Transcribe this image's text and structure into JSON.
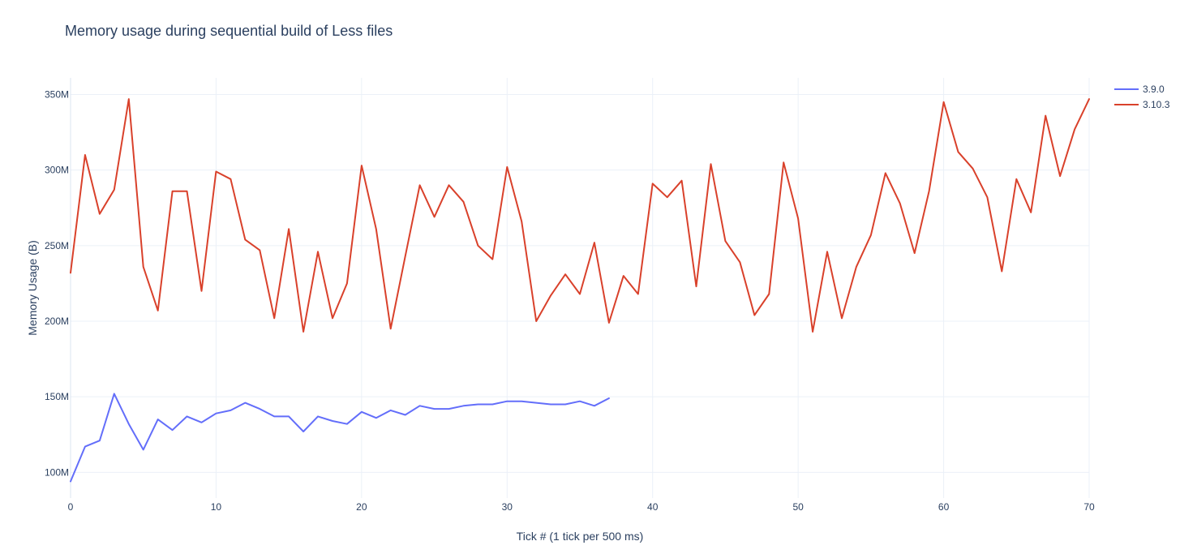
{
  "chart_data": {
    "type": "line",
    "title": "Memory usage during sequential build of Less files",
    "xlabel": "Tick # (1 tick per 500 ms)",
    "ylabel": "Memory Usage (B)",
    "xlim": [
      0,
      70
    ],
    "ylim": [
      83000000,
      361000000
    ],
    "xticks": [
      0,
      10,
      20,
      30,
      40,
      50,
      60,
      70
    ],
    "yticks": [
      {
        "value": 100000000,
        "label": "100M"
      },
      {
        "value": 150000000,
        "label": "150M"
      },
      {
        "value": 200000000,
        "label": "200M"
      },
      {
        "value": 250000000,
        "label": "250M"
      },
      {
        "value": 300000000,
        "label": "300M"
      },
      {
        "value": 350000000,
        "label": "350M"
      }
    ],
    "grid": true,
    "legend_position": "top-right",
    "series": [
      {
        "name": "3.9.0",
        "color": "#636efa",
        "x": [
          0,
          1,
          2,
          3,
          4,
          5,
          6,
          7,
          8,
          9,
          10,
          11,
          12,
          13,
          14,
          15,
          16,
          17,
          18,
          19,
          20,
          21,
          22,
          23,
          24,
          25,
          26,
          27,
          28,
          29,
          30,
          31,
          32,
          33,
          34,
          35,
          36,
          37
        ],
        "y": [
          94000000,
          117000000,
          121000000,
          152000000,
          132000000,
          115000000,
          135000000,
          128000000,
          137000000,
          133000000,
          139000000,
          141000000,
          146000000,
          142000000,
          137000000,
          137000000,
          127000000,
          137000000,
          134000000,
          132000000,
          140000000,
          136000000,
          141000000,
          138000000,
          144000000,
          142000000,
          142000000,
          144000000,
          145000000,
          145000000,
          147000000,
          147000000,
          146000000,
          145000000,
          145000000,
          147000000,
          144000000,
          149000000
        ]
      },
      {
        "name": "3.10.3",
        "color": "#d9412b",
        "x": [
          0,
          1,
          2,
          3,
          4,
          5,
          6,
          7,
          8,
          9,
          10,
          11,
          12,
          13,
          14,
          15,
          16,
          17,
          18,
          19,
          20,
          21,
          22,
          23,
          24,
          25,
          26,
          27,
          28,
          29,
          30,
          31,
          32,
          33,
          34,
          35,
          36,
          37,
          38,
          39,
          40,
          41,
          42,
          43,
          44,
          45,
          46,
          47,
          48,
          49,
          50,
          51,
          52,
          53,
          54,
          55,
          56,
          57,
          58,
          59,
          60,
          61,
          62,
          63,
          64,
          65,
          66,
          67,
          68,
          69,
          70
        ],
        "y": [
          232000000,
          310000000,
          271000000,
          287000000,
          347000000,
          236000000,
          207000000,
          286000000,
          286000000,
          220000000,
          299000000,
          294000000,
          254000000,
          247000000,
          202000000,
          261000000,
          193000000,
          246000000,
          202000000,
          225000000,
          303000000,
          261000000,
          195000000,
          243000000,
          290000000,
          269000000,
          290000000,
          279000000,
          250000000,
          241000000,
          302000000,
          266000000,
          200000000,
          217000000,
          231000000,
          218000000,
          252000000,
          199000000,
          230000000,
          218000000,
          291000000,
          282000000,
          293000000,
          223000000,
          304000000,
          253000000,
          239000000,
          204000000,
          218000000,
          305000000,
          268000000,
          193000000,
          246000000,
          202000000,
          236000000,
          257000000,
          298000000,
          278000000,
          245000000,
          286000000,
          345000000,
          312000000,
          301000000,
          282000000,
          233000000,
          294000000,
          272000000,
          336000000,
          296000000,
          327000000,
          347000000
        ]
      }
    ]
  }
}
